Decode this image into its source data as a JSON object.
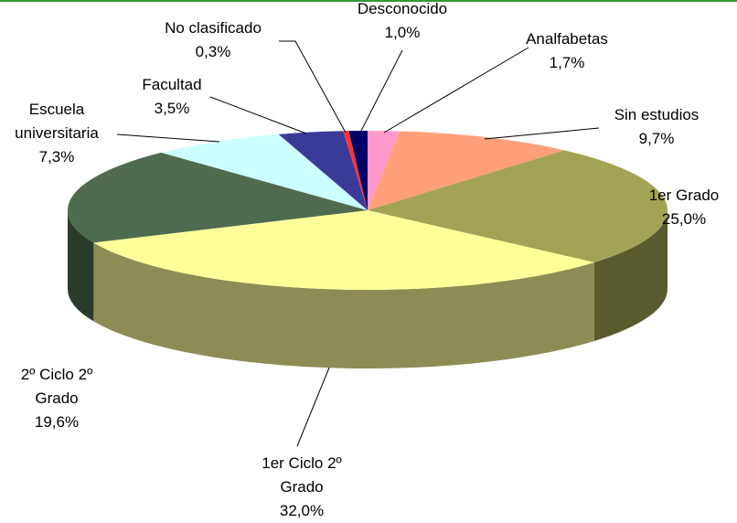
{
  "chart_data": {
    "type": "pie",
    "categories": [
      "Analfabetas",
      "Sin estudios",
      "1er Grado",
      "1er Ciclo 2º Grado",
      "2º Ciclo 2º Grado",
      "Escuela universitaria",
      "Facultad",
      "No clasificado",
      "Desconocido"
    ],
    "values": [
      1.7,
      9.7,
      25.0,
      32.0,
      19.6,
      7.3,
      3.5,
      0.3,
      1.0
    ],
    "value_labels": [
      "1,7%",
      "9,7%",
      "25,0%",
      "32,0%",
      "19,6%",
      "7,3%",
      "3,5%",
      "0,3%",
      "1,0%"
    ],
    "colors": [
      "#ff99cc",
      "#ffa07a",
      "#a3a355",
      "#ffff99",
      "#4f6b4f",
      "#ccffff",
      "#3a3a99",
      "#ff3333",
      "#000066"
    ]
  }
}
